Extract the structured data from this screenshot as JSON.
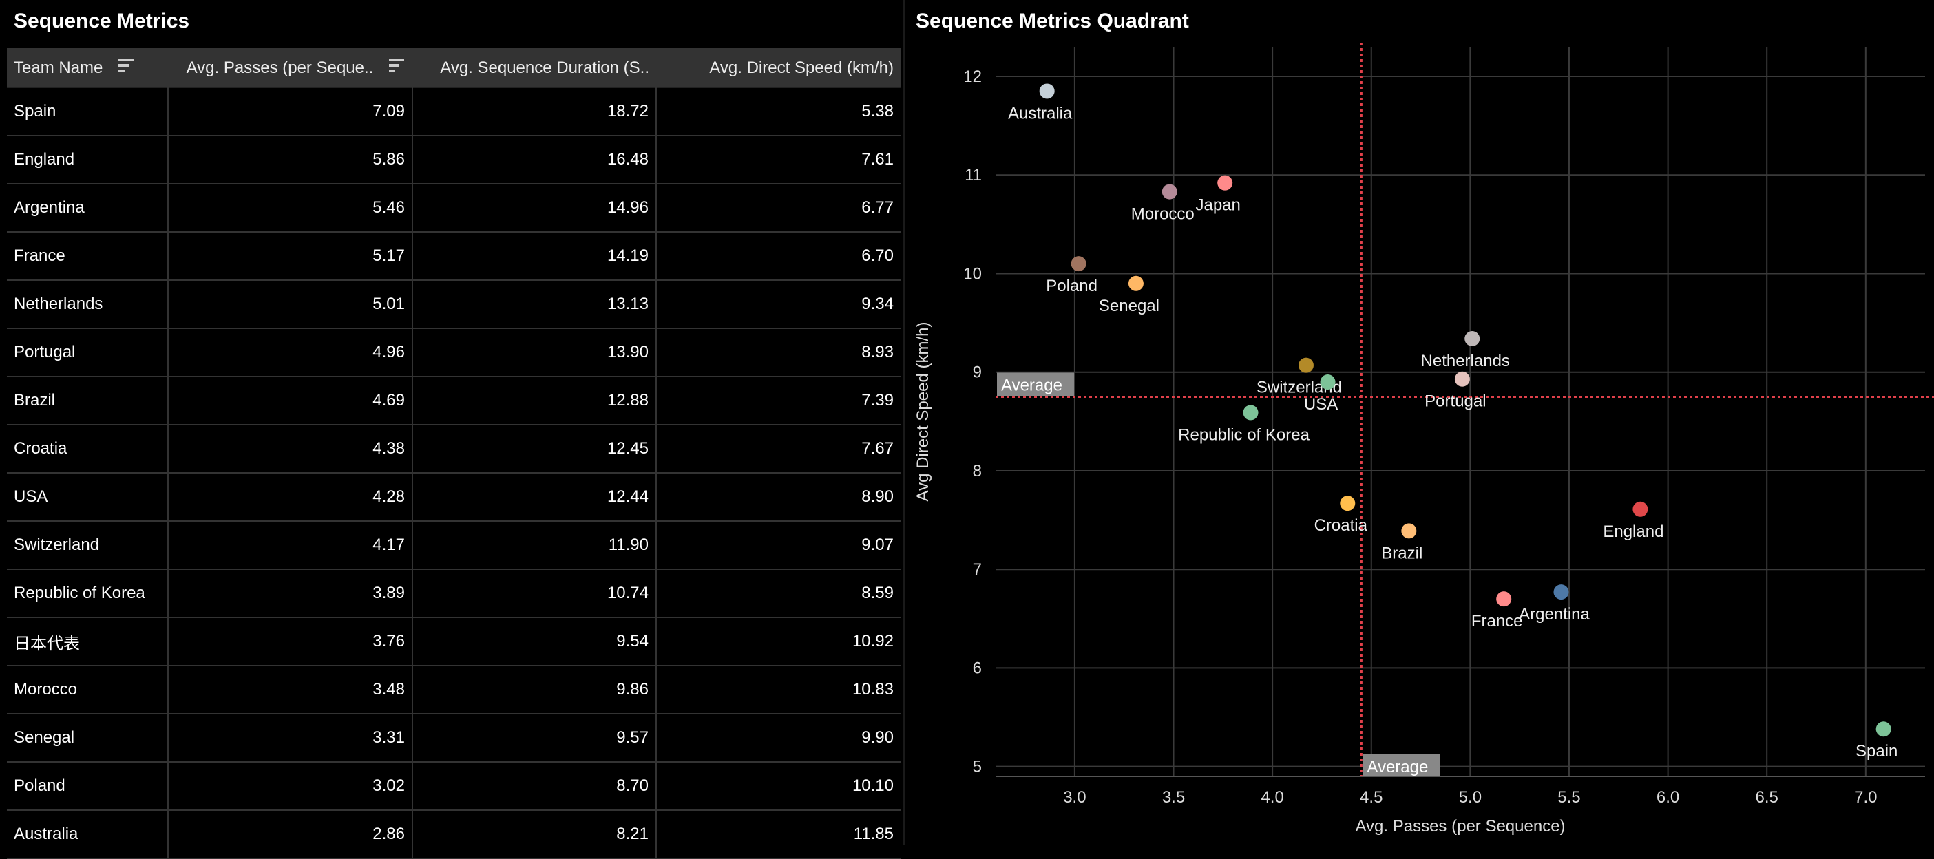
{
  "table_panel": {
    "title": "Sequence Metrics",
    "columns": [
      "Team Name",
      "Avg. Passes (per Seque..",
      "Avg. Sequence Duration (S..",
      "Avg. Direct Speed (km/h)"
    ],
    "rows": [
      [
        "Spain",
        "7.09",
        "18.72",
        "5.38"
      ],
      [
        "England",
        "5.86",
        "16.48",
        "7.61"
      ],
      [
        "Argentina",
        "5.46",
        "14.96",
        "6.77"
      ],
      [
        "France",
        "5.17",
        "14.19",
        "6.70"
      ],
      [
        "Netherlands",
        "5.01",
        "13.13",
        "9.34"
      ],
      [
        "Portugal",
        "4.96",
        "13.90",
        "8.93"
      ],
      [
        "Brazil",
        "4.69",
        "12.88",
        "7.39"
      ],
      [
        "Croatia",
        "4.38",
        "12.45",
        "7.67"
      ],
      [
        "USA",
        "4.28",
        "12.44",
        "8.90"
      ],
      [
        "Switzerland",
        "4.17",
        "11.90",
        "9.07"
      ],
      [
        "Republic of Korea",
        "3.89",
        "10.74",
        "8.59"
      ],
      [
        "日本代表",
        "3.76",
        "9.54",
        "10.92"
      ],
      [
        "Morocco",
        "3.48",
        "9.86",
        "10.83"
      ],
      [
        "Senegal",
        "3.31",
        "9.57",
        "9.90"
      ],
      [
        "Poland",
        "3.02",
        "8.70",
        "10.10"
      ],
      [
        "Australia",
        "2.86",
        "8.21",
        "11.85"
      ]
    ]
  },
  "chart_data": {
    "type": "scatter",
    "title": "Sequence Metrics Quadrant",
    "xlabel": "Avg. Passes (per Sequence)",
    "ylabel": "Avg Direct Speed (km/h)",
    "xlim": [
      2.6,
      7.3
    ],
    "ylim": [
      4.9,
      12.3
    ],
    "xticks": [
      3.0,
      3.5,
      4.0,
      4.5,
      5.0,
      5.5,
      6.0,
      6.5,
      7.0
    ],
    "xtick_labels": [
      "3.0",
      "3.5",
      "4.0",
      "4.5",
      "5.0",
      "5.5",
      "6.0",
      "6.5",
      "7.0"
    ],
    "yticks": [
      5,
      6,
      7,
      8,
      9,
      10,
      11,
      12
    ],
    "ytick_labels": [
      "5",
      "6",
      "7",
      "8",
      "9",
      "10",
      "11",
      "12"
    ],
    "grid": true,
    "reference_lines": {
      "x_average": 4.45,
      "y_average": 8.75,
      "x_label": "Average",
      "y_label": "Average",
      "color": "#e0404a"
    },
    "points": [
      {
        "name": "Australia",
        "x": 2.86,
        "y": 11.85,
        "color": "#c5d0d8",
        "label_pos": "below"
      },
      {
        "name": "Japan",
        "x": 3.76,
        "y": 10.92,
        "color": "#ff8a8a",
        "label_pos": "below"
      },
      {
        "name": "Morocco",
        "x": 3.48,
        "y": 10.83,
        "color": "#b48a98",
        "label_pos": "below"
      },
      {
        "name": "Poland",
        "x": 3.02,
        "y": 10.1,
        "color": "#a07460",
        "label_pos": "below"
      },
      {
        "name": "Senegal",
        "x": 3.31,
        "y": 9.9,
        "color": "#ffb865",
        "label_pos": "below"
      },
      {
        "name": "Netherlands",
        "x": 5.01,
        "y": 9.34,
        "color": "#bfb8b8",
        "label_pos": "below"
      },
      {
        "name": "Switzerland",
        "x": 4.17,
        "y": 9.07,
        "color": "#b38a28",
        "label_pos": "below"
      },
      {
        "name": "USA",
        "x": 4.28,
        "y": 8.9,
        "color": "#7dc398",
        "label_pos": "below"
      },
      {
        "name": "Portugal",
        "x": 4.96,
        "y": 8.93,
        "color": "#e6c3bd",
        "label_pos": "below"
      },
      {
        "name": "Republic of Korea",
        "x": 3.89,
        "y": 8.59,
        "color": "#7dc398",
        "label_pos": "below"
      },
      {
        "name": "Croatia",
        "x": 4.38,
        "y": 7.67,
        "color": "#ffbe4d",
        "label_pos": "below"
      },
      {
        "name": "Brazil",
        "x": 4.69,
        "y": 7.39,
        "color": "#ffbe76",
        "label_pos": "below"
      },
      {
        "name": "England",
        "x": 5.86,
        "y": 7.61,
        "color": "#e0484a",
        "label_pos": "below"
      },
      {
        "name": "France",
        "x": 5.17,
        "y": 6.7,
        "color": "#ff8a8a",
        "label_pos": "below"
      },
      {
        "name": "Argentina",
        "x": 5.46,
        "y": 6.77,
        "color": "#4e79a7",
        "label_pos": "below"
      },
      {
        "name": "Spain",
        "x": 7.09,
        "y": 5.38,
        "color": "#7dc398",
        "label_pos": "below"
      }
    ]
  }
}
